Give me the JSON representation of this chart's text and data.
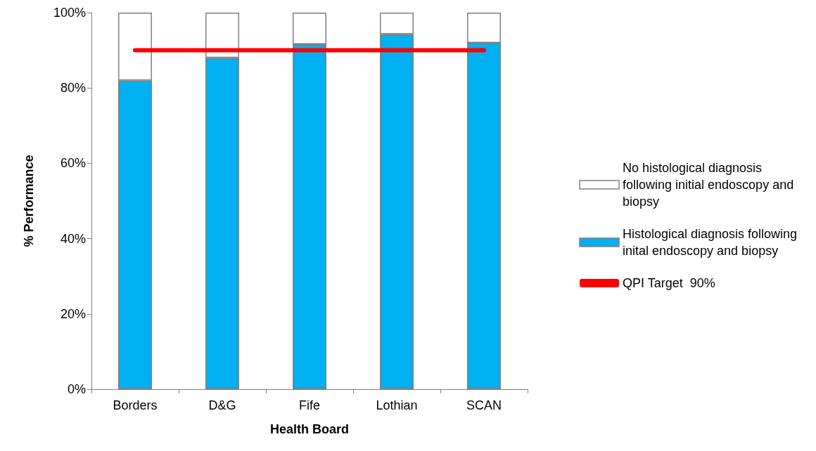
{
  "chart_data": {
    "type": "bar",
    "stacked": true,
    "xlabel": "Health Board",
    "ylabel": "% Performance",
    "categories": [
      "Borders",
      "D&G",
      "Fife",
      "Lothian",
      "SCAN"
    ],
    "series": [
      {
        "name": "Histological diagnosis following inital endoscopy and biopsy",
        "color": "#00b0f0",
        "values": [
          82.0,
          88.0,
          91.6,
          94.3,
          92.0
        ]
      },
      {
        "name": "No histological diagnosis following initial endoscopy and biopsy",
        "color": "#ffffff",
        "values": [
          18.0,
          12.0,
          8.4,
          5.7,
          8.0
        ]
      },
      {
        "name": "QPI Target  90%",
        "type": "line",
        "color": "#ff0000",
        "values": [
          90,
          90,
          90,
          90,
          90
        ]
      }
    ],
    "ylim": [
      0,
      100
    ],
    "yticks": [
      {
        "value": 0,
        "label": "0%"
      },
      {
        "value": 20,
        "label": "20%"
      },
      {
        "value": 40,
        "label": "40%"
      },
      {
        "value": 60,
        "label": "60%"
      },
      {
        "value": 80,
        "label": "80%"
      },
      {
        "value": 100,
        "label": "100%"
      }
    ],
    "grid": false,
    "legend": "right",
    "marker": "none"
  }
}
